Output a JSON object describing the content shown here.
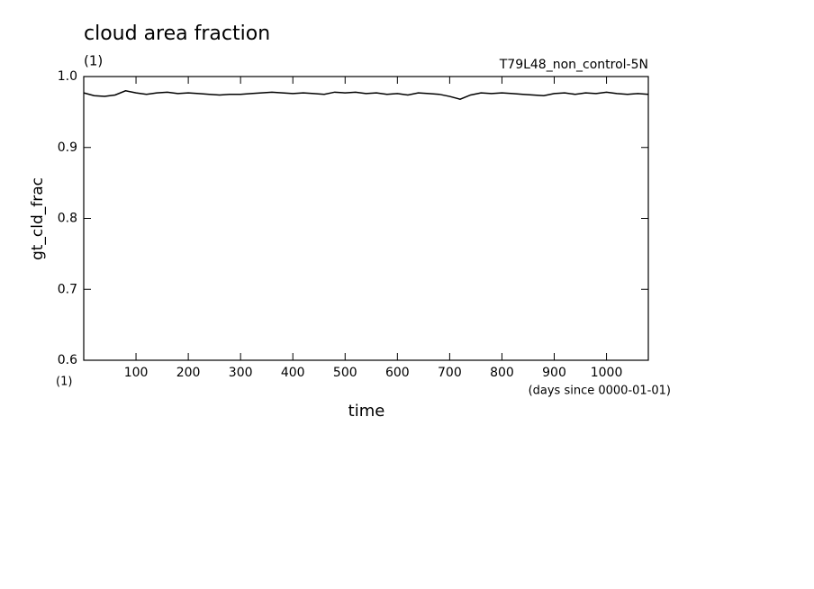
{
  "chart_data": {
    "type": "line",
    "title": "cloud area fraction",
    "subtitle": "(1)",
    "run_label": "T79L48_non_control-5N",
    "ylabel": "gt_cld_frac",
    "y_units": "(1)",
    "xlabel": "time",
    "x_units": "(days since 0000-01-01)",
    "xlim": [
      0,
      1080
    ],
    "ylim": [
      0.6,
      1
    ],
    "xticks": [
      100,
      200,
      300,
      400,
      500,
      600,
      700,
      800,
      900,
      1000
    ],
    "yticks": [
      0.6,
      0.7,
      0.8,
      0.9,
      {
        "value": 1,
        "label": "1.0"
      }
    ],
    "color": "#000000",
    "x": [
      0,
      20,
      40,
      60,
      80,
      100,
      120,
      140,
      160,
      180,
      200,
      220,
      240,
      260,
      280,
      300,
      320,
      340,
      360,
      380,
      400,
      420,
      440,
      460,
      480,
      500,
      520,
      540,
      560,
      580,
      600,
      620,
      640,
      660,
      680,
      700,
      720,
      740,
      760,
      780,
      800,
      820,
      840,
      860,
      880,
      900,
      920,
      940,
      960,
      980,
      1000,
      1020,
      1040,
      1060,
      1080
    ],
    "values": [
      0.977,
      0.973,
      0.972,
      0.974,
      0.98,
      0.977,
      0.975,
      0.977,
      0.978,
      0.976,
      0.977,
      0.976,
      0.975,
      0.974,
      0.975,
      0.975,
      0.976,
      0.977,
      0.978,
      0.977,
      0.976,
      0.977,
      0.976,
      0.975,
      0.978,
      0.977,
      0.978,
      0.976,
      0.977,
      0.975,
      0.976,
      0.974,
      0.977,
      0.976,
      0.975,
      0.972,
      0.968,
      0.974,
      0.977,
      0.976,
      0.977,
      0.976,
      0.975,
      0.974,
      0.973,
      0.976,
      0.977,
      0.975,
      0.977,
      0.976,
      0.978,
      0.976,
      0.975,
      0.976,
      0.975
    ]
  }
}
